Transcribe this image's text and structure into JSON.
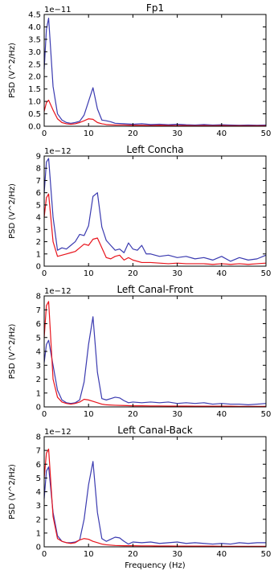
{
  "chart_data": [
    {
      "type": "line",
      "title": "Fp1",
      "ylabel": "PSD (V^2/Hz)",
      "xlabel": "",
      "exponent_label": "1e−11",
      "xlim": [
        0,
        50
      ],
      "ylim": [
        0,
        4.5
      ],
      "xticks": [
        0,
        10,
        20,
        30,
        40,
        50
      ],
      "xtick_labels": [
        "0",
        "10",
        "20",
        "30",
        "40",
        "50"
      ],
      "yticks": [
        0,
        0.5,
        1.0,
        1.5,
        2.0,
        2.5,
        3.0,
        3.5,
        4.0,
        4.5
      ],
      "ytick_labels": [
        "0.0",
        "0.5",
        "1.0",
        "1.5",
        "2.0",
        "2.5",
        "3.0",
        "3.5",
        "4.0",
        "4.5"
      ],
      "grid": false,
      "series": [
        {
          "color": "#3a3ab0",
          "x": [
            0,
            0.5,
            1,
            2,
            3,
            4,
            5,
            6,
            7,
            8,
            9,
            10,
            11,
            12,
            13,
            14,
            15,
            16,
            18,
            20,
            22,
            24,
            26,
            28,
            30,
            32,
            34,
            36,
            38,
            40,
            42,
            44,
            46,
            48,
            50
          ],
          "y": [
            2.3,
            3.9,
            4.35,
            1.6,
            0.5,
            0.25,
            0.15,
            0.12,
            0.15,
            0.2,
            0.45,
            1.0,
            1.55,
            0.7,
            0.25,
            0.22,
            0.18,
            0.12,
            0.1,
            0.08,
            0.1,
            0.07,
            0.08,
            0.06,
            0.08,
            0.06,
            0.05,
            0.07,
            0.05,
            0.06,
            0.05,
            0.04,
            0.05,
            0.04,
            0.05
          ]
        },
        {
          "color": "#e8141c",
          "x": [
            0,
            0.5,
            1,
            2,
            3,
            4,
            5,
            6,
            7,
            8,
            9,
            10,
            11,
            12,
            13,
            14,
            16,
            18,
            20,
            22,
            24,
            26,
            28,
            30,
            32,
            34,
            36,
            38,
            40,
            42,
            44,
            46,
            48,
            50
          ],
          "y": [
            0.6,
            0.95,
            1.05,
            0.65,
            0.3,
            0.15,
            0.1,
            0.08,
            0.1,
            0.15,
            0.22,
            0.3,
            0.28,
            0.15,
            0.1,
            0.07,
            0.05,
            0.05,
            0.04,
            0.04,
            0.03,
            0.04,
            0.03,
            0.03,
            0.03,
            0.02,
            0.03,
            0.02,
            0.03,
            0.02,
            0.02,
            0.02,
            0.02,
            0.02
          ]
        }
      ]
    },
    {
      "type": "line",
      "title": "Left Concha",
      "ylabel": "PSD (V^2/Hz)",
      "xlabel": "",
      "exponent_label": "1e−12",
      "xlim": [
        0,
        50
      ],
      "ylim": [
        0,
        9
      ],
      "xticks": [
        0,
        10,
        20,
        30,
        40,
        50
      ],
      "xtick_labels": [
        "0",
        "10",
        "20",
        "30",
        "40",
        "50"
      ],
      "yticks": [
        0,
        1,
        2,
        3,
        4,
        5,
        6,
        7,
        8,
        9
      ],
      "ytick_labels": [
        "0",
        "1",
        "2",
        "3",
        "4",
        "5",
        "6",
        "7",
        "8",
        "9"
      ],
      "grid": false,
      "series": [
        {
          "color": "#3a3ab0",
          "x": [
            0,
            0.5,
            1,
            2,
            3,
            4,
            5,
            6,
            7,
            8,
            9,
            10,
            11,
            12,
            13,
            14,
            15,
            16,
            17,
            18,
            19,
            20,
            21,
            22,
            23,
            24,
            26,
            28,
            30,
            32,
            34,
            36,
            38,
            40,
            42,
            44,
            46,
            48,
            50
          ],
          "y": [
            6.0,
            8.5,
            8.8,
            4.0,
            1.3,
            1.5,
            1.4,
            1.7,
            2.0,
            2.6,
            2.5,
            3.3,
            5.7,
            6.0,
            3.2,
            2.1,
            1.7,
            1.3,
            1.4,
            1.1,
            1.9,
            1.4,
            1.3,
            1.7,
            1.0,
            1.0,
            0.8,
            0.9,
            0.7,
            0.8,
            0.6,
            0.7,
            0.5,
            0.8,
            0.4,
            0.7,
            0.5,
            0.6,
            0.9
          ]
        },
        {
          "color": "#e8141c",
          "x": [
            0,
            0.5,
            1,
            2,
            3,
            4,
            5,
            6,
            7,
            8,
            9,
            10,
            11,
            12,
            13,
            14,
            15,
            16,
            17,
            18,
            19,
            20,
            22,
            24,
            26,
            28,
            30,
            32,
            34,
            36,
            38,
            40,
            42,
            44,
            46,
            48,
            50
          ],
          "y": [
            4.0,
            5.6,
            5.9,
            2.0,
            0.8,
            0.9,
            1.0,
            1.1,
            1.2,
            1.5,
            1.8,
            1.7,
            2.2,
            2.3,
            1.5,
            0.7,
            0.6,
            0.8,
            0.9,
            0.5,
            0.7,
            0.5,
            0.3,
            0.3,
            0.25,
            0.2,
            0.25,
            0.2,
            0.2,
            0.2,
            0.15,
            0.2,
            0.15,
            0.2,
            0.15,
            0.2,
            0.25
          ]
        }
      ]
    },
    {
      "type": "line",
      "title": "Left Canal-Front",
      "ylabel": "PSD (V^2/Hz)",
      "xlabel": "",
      "exponent_label": "1e−12",
      "xlim": [
        0,
        50
      ],
      "ylim": [
        0,
        8
      ],
      "xticks": [
        0,
        10,
        20,
        30,
        40,
        50
      ],
      "xtick_labels": [
        "0",
        "10",
        "20",
        "30",
        "40",
        "50"
      ],
      "yticks": [
        0,
        1,
        2,
        3,
        4,
        5,
        6,
        7,
        8
      ],
      "ytick_labels": [
        "0",
        "1",
        "2",
        "3",
        "4",
        "5",
        "6",
        "7",
        "8"
      ],
      "grid": false,
      "series": [
        {
          "color": "#3a3ab0",
          "x": [
            0,
            0.5,
            1,
            2,
            3,
            4,
            5,
            6,
            7,
            8,
            9,
            10,
            11,
            12,
            13,
            14,
            15,
            16,
            17,
            18,
            19,
            20,
            22,
            24,
            26,
            28,
            30,
            32,
            34,
            36,
            38,
            40,
            42,
            44,
            46,
            48,
            50
          ],
          "y": [
            3.2,
            4.5,
            4.8,
            3.0,
            1.2,
            0.5,
            0.3,
            0.25,
            0.3,
            0.5,
            1.8,
            4.5,
            6.5,
            2.5,
            0.6,
            0.5,
            0.6,
            0.7,
            0.65,
            0.45,
            0.3,
            0.35,
            0.3,
            0.35,
            0.3,
            0.35,
            0.25,
            0.3,
            0.25,
            0.3,
            0.2,
            0.25,
            0.2,
            0.2,
            0.15,
            0.2,
            0.25
          ]
        },
        {
          "color": "#e8141c",
          "x": [
            0,
            0.5,
            1,
            2,
            3,
            4,
            5,
            6,
            7,
            8,
            9,
            10,
            11,
            12,
            13,
            14,
            16,
            18,
            20,
            22,
            24,
            26,
            28,
            30,
            32,
            34,
            36,
            38,
            40,
            42,
            44,
            46,
            48,
            50
          ],
          "y": [
            5.0,
            7.3,
            7.6,
            2.0,
            0.7,
            0.35,
            0.25,
            0.2,
            0.25,
            0.35,
            0.55,
            0.5,
            0.4,
            0.3,
            0.2,
            0.15,
            0.12,
            0.1,
            0.08,
            0.08,
            0.07,
            0.07,
            0.06,
            0.06,
            0.06,
            0.05,
            0.05,
            0.05,
            0.05,
            0.05,
            0.04,
            0.04,
            0.04,
            0.04
          ]
        }
      ]
    },
    {
      "type": "line",
      "title": "Left Canal-Back",
      "ylabel": "PSD (V^2/Hz)",
      "xlabel": "Frequency (Hz)",
      "exponent_label": "1e−12",
      "xlim": [
        0,
        50
      ],
      "ylim": [
        0,
        8
      ],
      "xticks": [
        0,
        10,
        20,
        30,
        40,
        50
      ],
      "xtick_labels": [
        "0",
        "10",
        "20",
        "30",
        "40",
        "50"
      ],
      "yticks": [
        0,
        1,
        2,
        3,
        4,
        5,
        6,
        7,
        8
      ],
      "ytick_labels": [
        "0",
        "1",
        "2",
        "3",
        "4",
        "5",
        "6",
        "7",
        "8"
      ],
      "grid": false,
      "series": [
        {
          "color": "#3a3ab0",
          "x": [
            0,
            0.5,
            1,
            2,
            3,
            4,
            5,
            6,
            7,
            8,
            9,
            10,
            11,
            12,
            13,
            14,
            15,
            16,
            17,
            18,
            19,
            20,
            22,
            24,
            26,
            28,
            30,
            32,
            34,
            36,
            38,
            40,
            42,
            44,
            46,
            48,
            50
          ],
          "y": [
            3.5,
            5.5,
            5.8,
            2.5,
            0.8,
            0.4,
            0.3,
            0.3,
            0.35,
            0.5,
            2.0,
            4.5,
            6.2,
            2.5,
            0.6,
            0.4,
            0.55,
            0.7,
            0.65,
            0.4,
            0.2,
            0.35,
            0.3,
            0.35,
            0.25,
            0.3,
            0.35,
            0.25,
            0.3,
            0.25,
            0.2,
            0.25,
            0.2,
            0.3,
            0.25,
            0.3,
            0.3
          ]
        },
        {
          "color": "#e8141c",
          "x": [
            0,
            0.5,
            1,
            2,
            3,
            4,
            5,
            6,
            7,
            8,
            9,
            10,
            11,
            12,
            13,
            14,
            16,
            18,
            20,
            22,
            24,
            26,
            28,
            30,
            32,
            34,
            36,
            38,
            40,
            42,
            44,
            46,
            48,
            50
          ],
          "y": [
            5.0,
            6.8,
            7.1,
            2.2,
            0.6,
            0.4,
            0.3,
            0.25,
            0.3,
            0.5,
            0.6,
            0.55,
            0.4,
            0.3,
            0.2,
            0.15,
            0.1,
            0.08,
            0.08,
            0.07,
            0.07,
            0.06,
            0.06,
            0.05,
            0.05,
            0.05,
            0.05,
            0.05,
            0.04,
            0.04,
            0.04,
            0.04,
            0.04,
            0.04
          ]
        }
      ]
    }
  ]
}
